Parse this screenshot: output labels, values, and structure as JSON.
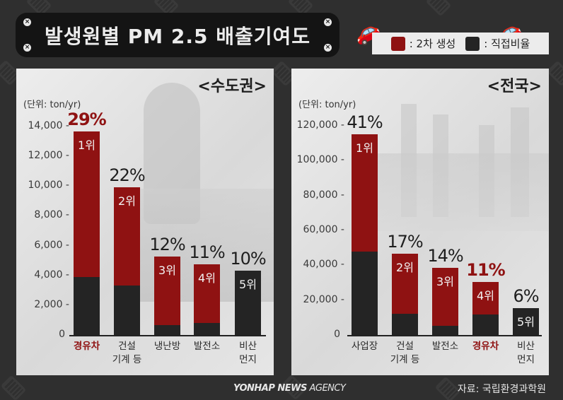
{
  "title": "발생원별 PM 2.5 배출기여도",
  "legend": {
    "items": [
      {
        "label": ": 2차 생성",
        "color": "#8f1212"
      },
      {
        "label": ": 직접비율",
        "color": "#242424"
      }
    ]
  },
  "footer": {
    "agency_bold": "YONHAP NEWS",
    "agency_light": " AGENCY",
    "source": "자료: 국립환경과학원"
  },
  "chart_data": [
    {
      "type": "bar",
      "stacked": true,
      "title": "<수도권>",
      "ylabel": "(단위: ton/yr)",
      "ylim": [
        0,
        14000
      ],
      "yticks": [
        "14,000",
        "12,000",
        "10,000",
        "8,000",
        "6,000",
        "4,000",
        "2,000",
        "0"
      ],
      "categories": [
        "경유차",
        "건설 기계 등",
        "냉난방",
        "발전소",
        "비산 먼지"
      ],
      "category_lines": [
        [
          "경유차"
        ],
        [
          "건설",
          "기계 등"
        ],
        [
          "냉난방"
        ],
        [
          "발전소"
        ],
        [
          "비산",
          "먼지"
        ]
      ],
      "highlight_category": "경유차",
      "totals": [
        13670,
        9920,
        5270,
        4750,
        4320
      ],
      "series": [
        {
          "name": "직접비율",
          "color": "#242424",
          "values": [
            3890,
            3320,
            660,
            810,
            4320
          ]
        },
        {
          "name": "2차 생성",
          "color": "#8f1212",
          "values": [
            9780,
            6600,
            4610,
            3940,
            0
          ]
        }
      ],
      "percent_labels": [
        "29%",
        "22%",
        "12%",
        "11%",
        "10%"
      ],
      "rank_labels": [
        "1위",
        "2위",
        "3위",
        "4위",
        "5위"
      ]
    },
    {
      "type": "bar",
      "stacked": true,
      "title": "<전국>",
      "ylabel": "(단위: ton/yr)",
      "ylim": [
        0,
        120000
      ],
      "yticks": [
        "120,000",
        "100,000",
        "80,000",
        "60,000",
        "40,000",
        "20,000",
        "0"
      ],
      "categories": [
        "사업장",
        "건설 기계 등",
        "발전소",
        "경유차",
        "비산 먼지"
      ],
      "category_lines": [
        [
          "사업장"
        ],
        [
          "건설",
          "기계 등"
        ],
        [
          "발전소"
        ],
        [
          "경유차"
        ],
        [
          "비산",
          "먼지"
        ]
      ],
      "highlight_category": "경유차",
      "totals": [
        115100,
        46600,
        38500,
        30400,
        15400
      ],
      "series": [
        {
          "name": "직접비율",
          "color": "#242424",
          "values": [
            47800,
            12200,
            5300,
            11800,
            15400
          ]
        },
        {
          "name": "2차 생성",
          "color": "#8f1212",
          "values": [
            67300,
            34400,
            33200,
            18600,
            0
          ]
        }
      ],
      "percent_labels": [
        "41%",
        "17%",
        "14%",
        "11%",
        "6%"
      ],
      "rank_labels": [
        "1위",
        "2위",
        "3위",
        "4위",
        "5위"
      ]
    }
  ]
}
